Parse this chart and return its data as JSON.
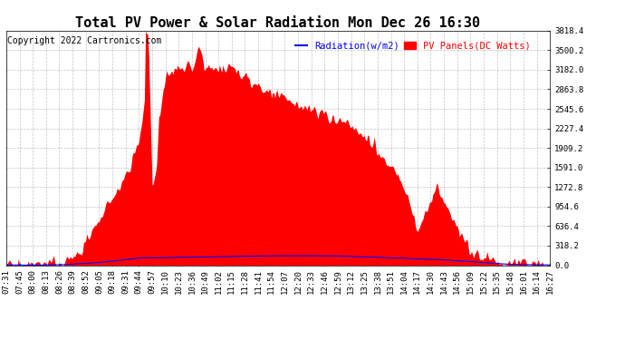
{
  "title": "Total PV Power & Solar Radiation Mon Dec 26 16:30",
  "copyright": "Copyright 2022 Cartronics.com",
  "legend_radiation": "Radiation(w/m2)",
  "legend_pv": "PV Panels(DC Watts)",
  "y_max": 3818.4,
  "y_step": 318.2,
  "background_color": "#ffffff",
  "plot_bg_color": "#ffffff",
  "grid_color": "#aaaaaa",
  "pv_fill_color": "#ff0000",
  "radiation_line_color": "#0000ff",
  "title_fontsize": 11,
  "copyright_fontsize": 7,
  "tick_fontsize": 6.5,
  "legend_fontsize": 7.5,
  "x_labels": [
    "07:31",
    "07:45",
    "08:00",
    "08:13",
    "08:26",
    "08:39",
    "08:52",
    "09:05",
    "09:18",
    "09:31",
    "09:44",
    "09:57",
    "10:10",
    "10:23",
    "10:36",
    "10:49",
    "11:02",
    "11:15",
    "11:28",
    "11:41",
    "11:54",
    "12:07",
    "12:20",
    "12:33",
    "12:46",
    "12:59",
    "13:12",
    "13:25",
    "13:38",
    "13:51",
    "14:04",
    "14:17",
    "14:30",
    "14:43",
    "14:56",
    "15:09",
    "15:22",
    "15:35",
    "15:48",
    "16:01",
    "16:14",
    "16:27"
  ]
}
